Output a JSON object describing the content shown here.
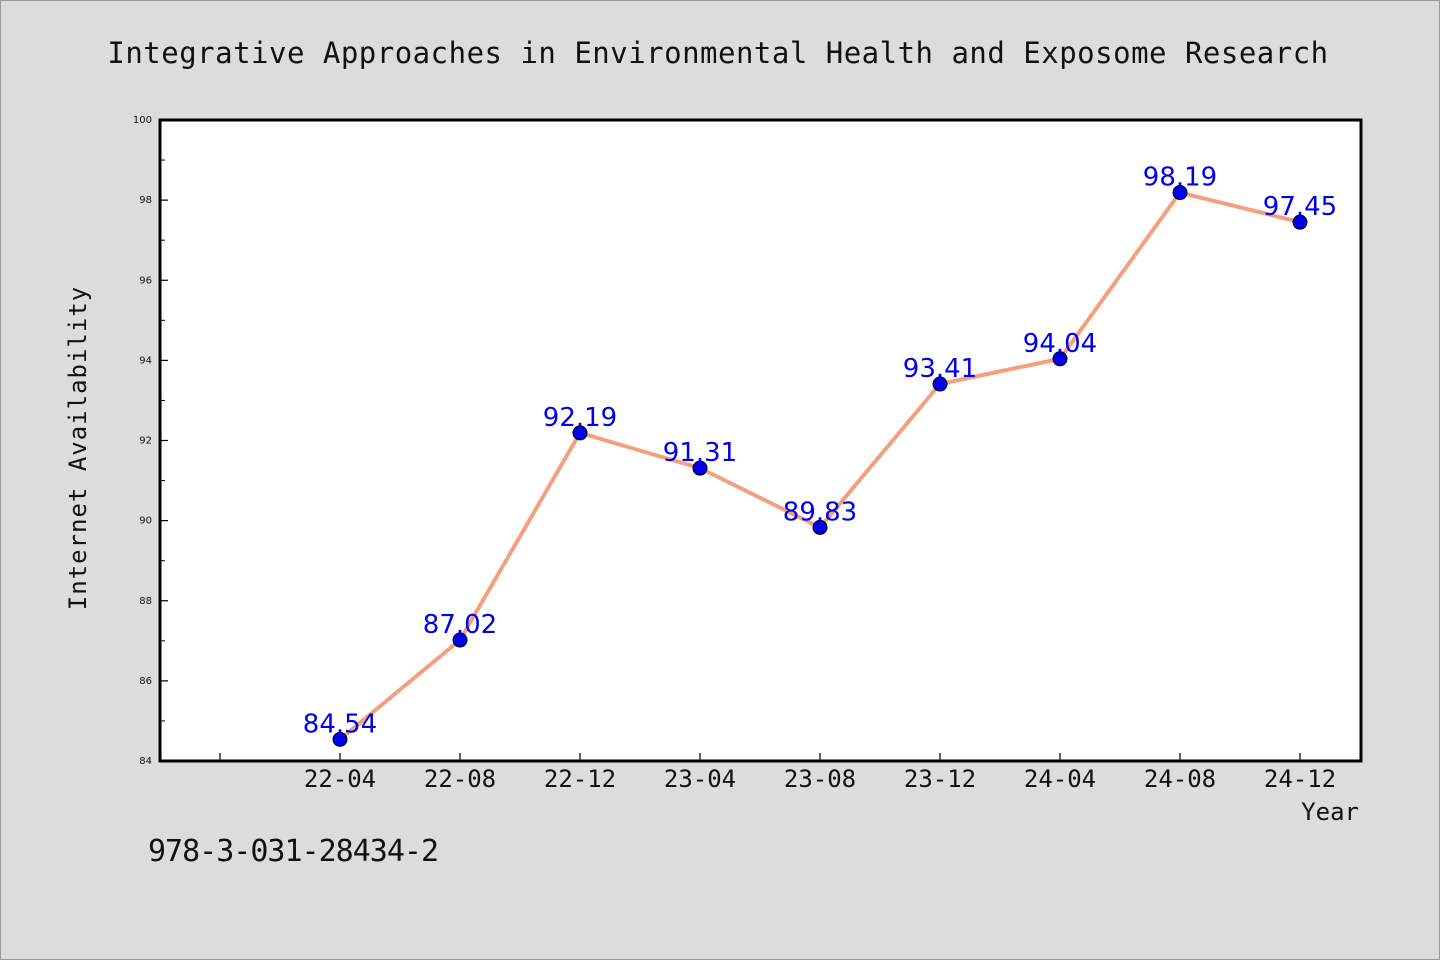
{
  "chart_data": {
    "type": "line",
    "title": "Integrative Approaches in Environmental Health and Exposome Research",
    "xlabel": "Year",
    "ylabel": "Internet Availability",
    "categories": [
      "22-04",
      "22-08",
      "22-12",
      "23-04",
      "23-08",
      "23-12",
      "24-04",
      "24-08",
      "24-12"
    ],
    "values": [
      84.54,
      87.02,
      92.19,
      91.31,
      89.83,
      93.41,
      94.04,
      98.19,
      97.45
    ],
    "data_labels": [
      "84.54",
      "87.02",
      "92.19",
      "91.31",
      "89.83",
      "93.41",
      "94.04",
      "98.19",
      "97.45"
    ],
    "ylim": [
      84,
      100
    ],
    "yticks": [
      "84",
      "86",
      "88",
      "90",
      "92",
      "94",
      "96",
      "98",
      "100"
    ],
    "grid": false,
    "legend": "none",
    "colors": {
      "line": "#f4a07f",
      "marker": "#0000ee",
      "data_label": "#0000ee",
      "background": "#dcdcdc",
      "plot_background": "#ffffff"
    }
  },
  "footnote": "978-3-031-28434-2"
}
